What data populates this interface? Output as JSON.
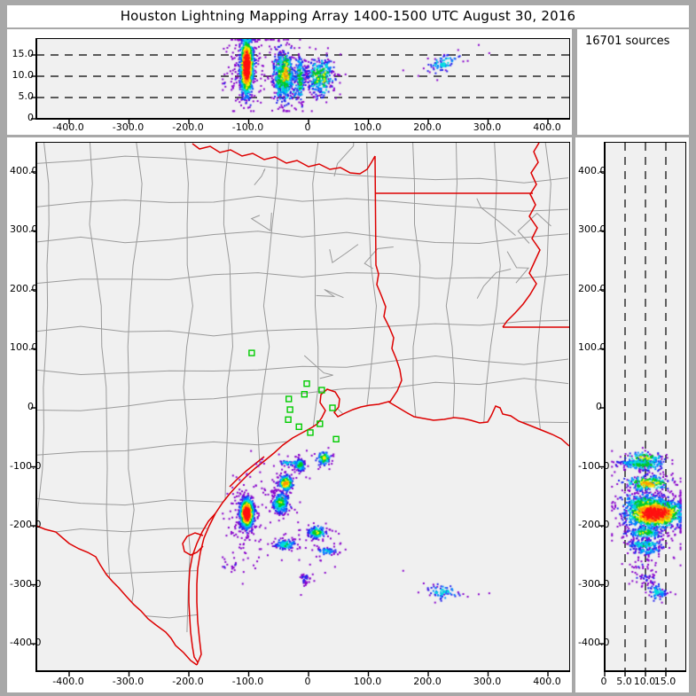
{
  "title": "Houston Lightning Mapping Array   1400-1500 UTC  August 30, 2016",
  "sources_label": "16701 sources",
  "colors": {
    "frame_background": "#a8a8a8",
    "panel_background": "#ffffff",
    "plot_background": "#f0f0f0",
    "county_line": "#9a9a9a",
    "state_border": "#dd0000",
    "station_marker": "#00cc00",
    "axis": "#000000",
    "density_palette": [
      "#8800cc",
      "#2222ee",
      "#0088ff",
      "#00dddd",
      "#00cc22",
      "#ffee00",
      "#ff9900",
      "#ff1111"
    ]
  },
  "panels": {
    "top": {
      "description": "altitude (km) vs east-west distance (km)",
      "x_ticks": [
        "-400.0",
        "-300.0",
        "-200.0",
        "-100.0",
        "0",
        "100.0",
        "200.0",
        "300.0",
        "400.0"
      ],
      "y_ticks": [
        "15.0",
        "10.0",
        "5.0",
        "0"
      ]
    },
    "map": {
      "description": "plan view map, north-south vs east-west distance (km)",
      "x_ticks": [
        "-400.0",
        "-300.0",
        "-200.0",
        "-100.0",
        "0",
        "100.0",
        "200.0",
        "300.0",
        "400.0"
      ],
      "y_ticks": [
        "400.0",
        "300.0",
        "200.0",
        "100.0",
        "0",
        "-100.0",
        "-200.0",
        "-300.0",
        "-400.0"
      ]
    },
    "right": {
      "description": "north-south distance (km) vs altitude (km)",
      "x_ticks": [
        "0",
        "5.0",
        "10.0",
        "15.0"
      ],
      "y_ticks": [
        "400.0",
        "300.0",
        "200.0",
        "100.0",
        "0",
        "-100.0",
        "-200.0",
        "-300.0",
        "-400.0"
      ]
    }
  },
  "chart_data": {
    "type": "scatter",
    "title": "Houston Lightning Mapping Array",
    "time_range_utc": "1400-1500 UTC",
    "date": "August 30, 2016",
    "total_sources": 16701,
    "axes": {
      "east_west_km": [
        -455,
        435
      ],
      "north_south_km": [
        -449,
        449
      ],
      "altitude_km": [
        0,
        18.8
      ],
      "dashed_altitude_lines_km": [
        5,
        10,
        15
      ],
      "grid": "dashed altitude reference lines only"
    },
    "legend_position": "none",
    "stations_km": [
      [
        -95,
        93
      ],
      [
        -3,
        41
      ],
      [
        22,
        30
      ],
      [
        -7,
        23
      ],
      [
        -33,
        15
      ],
      [
        -31,
        -3
      ],
      [
        40,
        0
      ],
      [
        -34,
        -20
      ],
      [
        19,
        -27
      ],
      [
        -16,
        -32
      ],
      [
        3,
        -42
      ],
      [
        46,
        -53
      ]
    ],
    "clusters": [
      {
        "name": "main-storm-core",
        "n": 1500,
        "ew_km": -103,
        "ns_km": -179,
        "alt_km": 12.3,
        "sd_ew": 5,
        "sd_ns": 11,
        "sd_alt": 3.2,
        "intensity": 1.05,
        "outlier_frac": 0.15,
        "alt_skew": 0
      },
      {
        "name": "cell-west-merged",
        "n": 300,
        "ew_km": -47,
        "ns_km": -161,
        "alt_km": 10,
        "sd_ew": 6,
        "sd_ns": 8,
        "sd_alt": 3.0,
        "intensity": 0.6,
        "outlier_frac": 0.15,
        "alt_skew": 0
      },
      {
        "name": "cell-bay",
        "n": 260,
        "ew_km": -38,
        "ns_km": -128,
        "alt_km": 10.5,
        "sd_ew": 5,
        "sd_ns": 6,
        "sd_alt": 2.6,
        "intensity": 0.8,
        "outlier_frac": 0.15,
        "alt_skew": 0
      },
      {
        "name": "cell-coast-1",
        "n": 150,
        "ew_km": -14,
        "ns_km": -97,
        "alt_km": 9.5,
        "sd_ew": 4,
        "sd_ns": 5,
        "sd_alt": 2.8,
        "intensity": 0.55,
        "outlier_frac": 0.2,
        "alt_skew": 0
      },
      {
        "name": "cell-coast-2",
        "n": 110,
        "ew_km": 26,
        "ns_km": -85,
        "alt_km": 10,
        "sd_ew": 5,
        "sd_ns": 5,
        "sd_alt": 2.4,
        "intensity": 0.65,
        "outlier_frac": 0.15,
        "alt_skew": 0
      },
      {
        "name": "cell-offshore-1",
        "n": 190,
        "ew_km": 14,
        "ns_km": -212,
        "alt_km": 10,
        "sd_ew": 7,
        "sd_ns": 5,
        "sd_alt": 2.0,
        "intensity": 0.6,
        "outlier_frac": 0.2,
        "alt_skew": 0
      },
      {
        "name": "cell-offshore-2",
        "n": 140,
        "ew_km": -38,
        "ns_km": -232,
        "alt_km": 10,
        "sd_ew": 8,
        "sd_ns": 4,
        "sd_alt": 2.0,
        "intensity": 0.5,
        "outlier_frac": 0.2,
        "alt_skew": 0
      },
      {
        "name": "cell-offshore-3",
        "n": 60,
        "ew_km": 30,
        "ns_km": -243,
        "alt_km": 10,
        "sd_ew": 8,
        "sd_ns": 3,
        "sd_alt": 1.8,
        "intensity": 0.4,
        "outlier_frac": 0.25,
        "alt_skew": 0
      },
      {
        "name": "sparse-offshore",
        "n": 40,
        "ew_km": -6,
        "ns_km": -288,
        "alt_km": 10,
        "sd_ew": 4,
        "sd_ns": 5,
        "sd_alt": 1.4,
        "intensity": 0.18,
        "outlier_frac": 0.3,
        "alt_skew": 0
      },
      {
        "name": "anvil-far-east",
        "n": 80,
        "ew_km": 225,
        "ns_km": -312,
        "alt_km": 13,
        "sd_ew": 15,
        "sd_ns": 6,
        "sd_alt": 1.0,
        "intensity": 0.42,
        "outlier_frac": 0.25,
        "alt_skew": 0.05
      },
      {
        "name": "sparse-southwest",
        "n": 22,
        "ew_km": -130,
        "ns_km": -267,
        "alt_km": 9,
        "sd_ew": 8,
        "sd_ns": 6,
        "sd_alt": 1.8,
        "intensity": 0.12,
        "outlier_frac": 0.3,
        "alt_skew": 0
      },
      {
        "name": "anvil-band-north",
        "n": 60,
        "ew_km": -30,
        "ns_km": -93,
        "alt_km": 7,
        "sd_ew": 9,
        "sd_ns": 2,
        "sd_alt": 2.4,
        "intensity": 0.45,
        "outlier_frac": 0.2,
        "alt_skew": 0
      }
    ]
  }
}
